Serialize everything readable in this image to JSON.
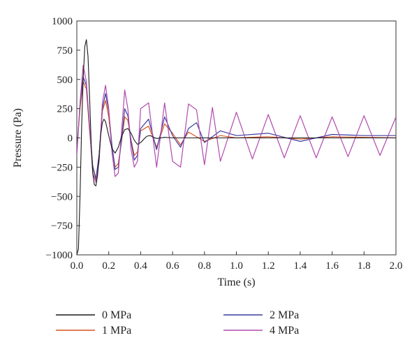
{
  "chart_data": {
    "type": "line",
    "title": "",
    "xlabel": "Time (s)",
    "ylabel": "Pressure (Pa)",
    "xlim": [
      0,
      2.0
    ],
    "ylim": [
      -1000,
      1000
    ],
    "x_ticks": [
      0.0,
      0.2,
      0.4,
      0.6,
      0.8,
      1.0,
      1.2,
      1.4,
      1.6,
      1.8,
      2.0
    ],
    "x_tick_labels": [
      "0.0",
      "0.2",
      "0.4",
      "0.6",
      "0.8",
      "1.0",
      "1.2",
      "1.4",
      "1.6",
      "1.8",
      "2.0"
    ],
    "y_ticks": [
      -1000,
      -750,
      -500,
      -250,
      0,
      250,
      500,
      750,
      1000
    ],
    "y_tick_labels": [
      "−1000",
      "−750",
      "−500",
      "−250",
      "0",
      "250",
      "500",
      "750",
      "1000"
    ],
    "grid": false,
    "legend_position": "bottom",
    "series": [
      {
        "name": "0 MPa",
        "color": "#1a1a1a",
        "x": [
          0.0,
          0.01,
          0.02,
          0.03,
          0.04,
          0.05,
          0.06,
          0.07,
          0.08,
          0.09,
          0.1,
          0.11,
          0.12,
          0.13,
          0.14,
          0.15,
          0.16,
          0.17,
          0.18,
          0.2,
          0.22,
          0.24,
          0.26,
          0.28,
          0.3,
          0.32,
          0.34,
          0.36,
          0.38,
          0.4,
          0.42,
          0.44,
          0.46,
          0.48,
          0.5,
          0.55,
          0.6,
          0.7,
          0.8,
          1.0,
          1.2,
          1.4,
          1.6,
          1.8,
          2.0
        ],
        "y": [
          -1000,
          -950,
          -500,
          100,
          500,
          780,
          840,
          700,
          350,
          -50,
          -300,
          -400,
          -410,
          -320,
          -150,
          30,
          130,
          160,
          140,
          20,
          -90,
          -130,
          -80,
          10,
          70,
          80,
          40,
          -20,
          -55,
          -40,
          -10,
          15,
          20,
          5,
          -5,
          5,
          0,
          0,
          0,
          0,
          0,
          0,
          0,
          0,
          0
        ]
      },
      {
        "name": "1 MPa",
        "color": "#d9531e",
        "x": [
          0.0,
          0.02,
          0.04,
          0.06,
          0.08,
          0.1,
          0.12,
          0.14,
          0.16,
          0.18,
          0.2,
          0.22,
          0.24,
          0.26,
          0.28,
          0.3,
          0.32,
          0.34,
          0.36,
          0.38,
          0.4,
          0.45,
          0.5,
          0.55,
          0.6,
          0.65,
          0.7,
          0.8,
          0.9,
          1.0,
          1.2,
          1.4,
          1.6,
          1.8,
          2.0
        ],
        "y": [
          -100,
          250,
          480,
          420,
          60,
          -250,
          -360,
          -150,
          230,
          320,
          180,
          -80,
          -250,
          -220,
          -30,
          180,
          150,
          -20,
          -150,
          -120,
          60,
          100,
          -80,
          120,
          40,
          -60,
          50,
          -30,
          20,
          0,
          10,
          -10,
          10,
          5,
          0
        ]
      },
      {
        "name": "2 MPa",
        "color": "#3c3c9e",
        "x": [
          0.0,
          0.02,
          0.04,
          0.06,
          0.08,
          0.1,
          0.12,
          0.14,
          0.16,
          0.18,
          0.2,
          0.22,
          0.24,
          0.26,
          0.28,
          0.3,
          0.32,
          0.34,
          0.36,
          0.38,
          0.4,
          0.45,
          0.5,
          0.55,
          0.6,
          0.65,
          0.7,
          0.75,
          0.8,
          0.9,
          1.0,
          1.2,
          1.4,
          1.6,
          1.8,
          2.0
        ],
        "y": [
          -120,
          280,
          520,
          450,
          80,
          -240,
          -350,
          -140,
          250,
          380,
          230,
          -60,
          -270,
          -250,
          -20,
          250,
          190,
          -30,
          -190,
          -150,
          80,
          160,
          -100,
          180,
          20,
          -80,
          80,
          130,
          -40,
          60,
          20,
          40,
          -30,
          30,
          20,
          20
        ]
      },
      {
        "name": "4 MPa",
        "color": "#b04aad",
        "x": [
          0.0,
          0.02,
          0.04,
          0.06,
          0.08,
          0.1,
          0.12,
          0.14,
          0.16,
          0.18,
          0.2,
          0.22,
          0.24,
          0.26,
          0.28,
          0.3,
          0.32,
          0.34,
          0.36,
          0.38,
          0.4,
          0.45,
          0.5,
          0.55,
          0.6,
          0.65,
          0.7,
          0.75,
          0.8,
          0.85,
          0.9,
          1.0,
          1.1,
          1.2,
          1.3,
          1.4,
          1.5,
          1.6,
          1.7,
          1.8,
          1.9,
          2.0
        ],
        "y": [
          -150,
          300,
          620,
          480,
          100,
          -300,
          -380,
          -200,
          300,
          450,
          250,
          -120,
          -330,
          -300,
          50,
          410,
          250,
          -100,
          -250,
          -200,
          250,
          300,
          -250,
          300,
          -200,
          -250,
          290,
          240,
          -230,
          260,
          -200,
          220,
          -180,
          200,
          -170,
          190,
          -170,
          180,
          -160,
          190,
          -150,
          180
        ]
      }
    ]
  }
}
